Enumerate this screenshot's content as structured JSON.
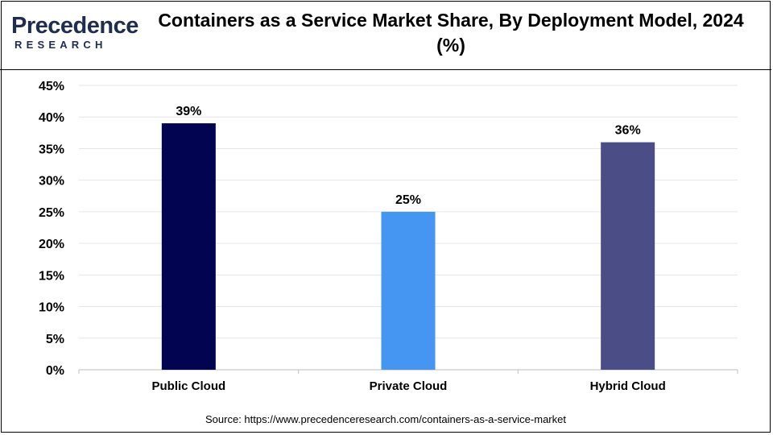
{
  "logo": {
    "name_top": "Precedence",
    "name_bottom": "RESEARCH"
  },
  "header": {
    "title": "Containers as a Service Market Share, By Deployment Model, 2024 (%)"
  },
  "source": "Source: https://www.precedenceresearch.com/containers-as-a-service-market",
  "colors": {
    "public": "#020452",
    "private": "#4596f2",
    "hybrid": "#4b4d87",
    "grid": "#e6e6e6",
    "axis": "#bfbfbf"
  },
  "chart_data": {
    "type": "bar",
    "title": "Containers as a Service Market Share, By Deployment Model, 2024 (%)",
    "categories": [
      "Public Cloud",
      "Private Cloud",
      "Hybrid Cloud"
    ],
    "values": [
      39,
      25,
      36
    ],
    "data_labels": [
      "39%",
      "25%",
      "36%"
    ],
    "ylim": [
      0,
      45
    ],
    "yticks": [
      0,
      5,
      10,
      15,
      20,
      25,
      30,
      35,
      40,
      45
    ],
    "ytick_labels": [
      "0%",
      "5%",
      "10%",
      "15%",
      "20%",
      "25%",
      "30%",
      "35%",
      "40%",
      "45%"
    ],
    "grid": true,
    "xlabel": "",
    "ylabel": ""
  }
}
